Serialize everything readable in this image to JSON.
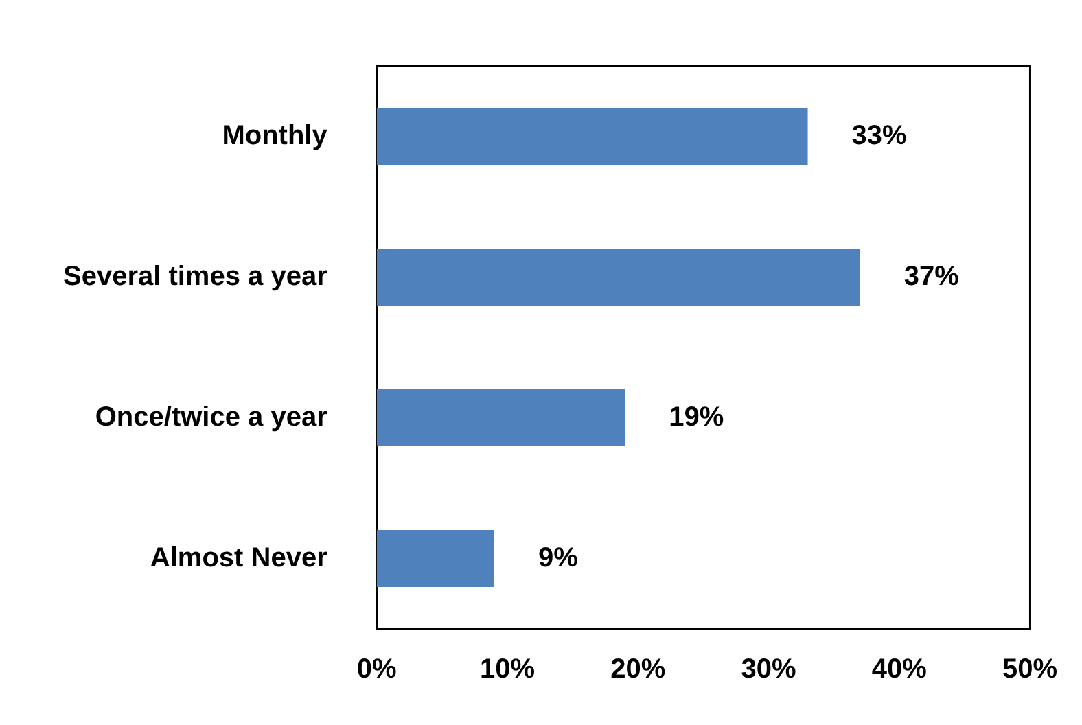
{
  "chart_data": {
    "type": "bar",
    "orientation": "horizontal",
    "categories": [
      "Monthly",
      "Several times a year",
      "Once/twice a year",
      "Almost Never"
    ],
    "values": [
      33,
      37,
      19,
      9
    ],
    "color": "#4f81bd",
    "value_labels": [
      "33%",
      "37%",
      "19%",
      "9%"
    ],
    "xlim": [
      0,
      50
    ],
    "xticks": [
      {
        "value": 0,
        "label": "0%"
      },
      {
        "value": 10,
        "label": "10%"
      },
      {
        "value": 20,
        "label": "20%"
      },
      {
        "value": 30,
        "label": "30%"
      },
      {
        "value": 40,
        "label": "40%"
      },
      {
        "value": 50,
        "label": "50%"
      }
    ],
    "grid": false,
    "legend": false
  }
}
